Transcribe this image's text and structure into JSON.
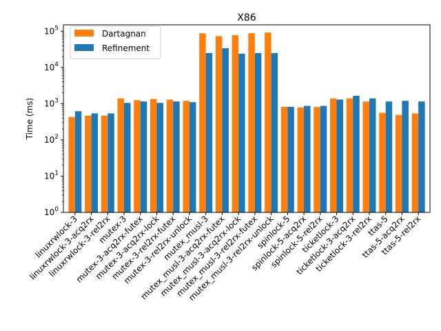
{
  "chart_data": {
    "type": "bar",
    "title": "X86",
    "xlabel": "",
    "ylabel": "Time (ms)",
    "yscale": "log",
    "ylim": [
      1,
      150000
    ],
    "yticks": [
      {
        "value": 1,
        "base": "10",
        "exp": "0"
      },
      {
        "value": 10,
        "base": "10",
        "exp": "1"
      },
      {
        "value": 100,
        "base": "10",
        "exp": "2"
      },
      {
        "value": 1000,
        "base": "10",
        "exp": "3"
      },
      {
        "value": 10000,
        "base": "10",
        "exp": "4"
      },
      {
        "value": 100000,
        "base": "10",
        "exp": "5"
      }
    ],
    "legend_position": "top-left",
    "grid": false,
    "categories": [
      "linuxrwlock-3",
      "linuxrwlock-3-acq2rx",
      "linuxrwlock-3-rel2rx",
      "mutex-3",
      "mutex-3-acq2rx-futex",
      "mutex-3-acq2rx-lock",
      "mutex-3-rel2rx-futex",
      "mutex-3-rel2rx-unlock",
      "mutex_musl-3",
      "mutex_musl-3-acq2rx-futex",
      "mutex_musl-3-acq2rx-lock",
      "mutex_musl-3-rel2rx-futex",
      "mutex_musl-3-rel2rx-unlock",
      "spinlock-5",
      "spinlock-5-acq2rx",
      "spinlock-5-rel2rx",
      "ticketlock-3",
      "ticketlock-3-acq2rx",
      "ticketlock-3-rel2rx",
      "ttas-5",
      "ttas-5-acq2rx",
      "ttas-5-rel2rx"
    ],
    "series": [
      {
        "name": "Dartagnan",
        "color": "#ff7f0e",
        "values": [
          430,
          470,
          470,
          1400,
          1250,
          1350,
          1300,
          1200,
          88000,
          73000,
          78000,
          88000,
          92000,
          820,
          790,
          810,
          1400,
          1400,
          1150,
          560,
          490,
          540
        ]
      },
      {
        "name": "Refinement",
        "color": "#1f77b4",
        "values": [
          620,
          540,
          540,
          1050,
          1150,
          1050,
          1150,
          1100,
          25000,
          34000,
          24000,
          25000,
          25000,
          820,
          870,
          870,
          1300,
          1650,
          1400,
          1150,
          1200,
          1150
        ]
      }
    ]
  }
}
